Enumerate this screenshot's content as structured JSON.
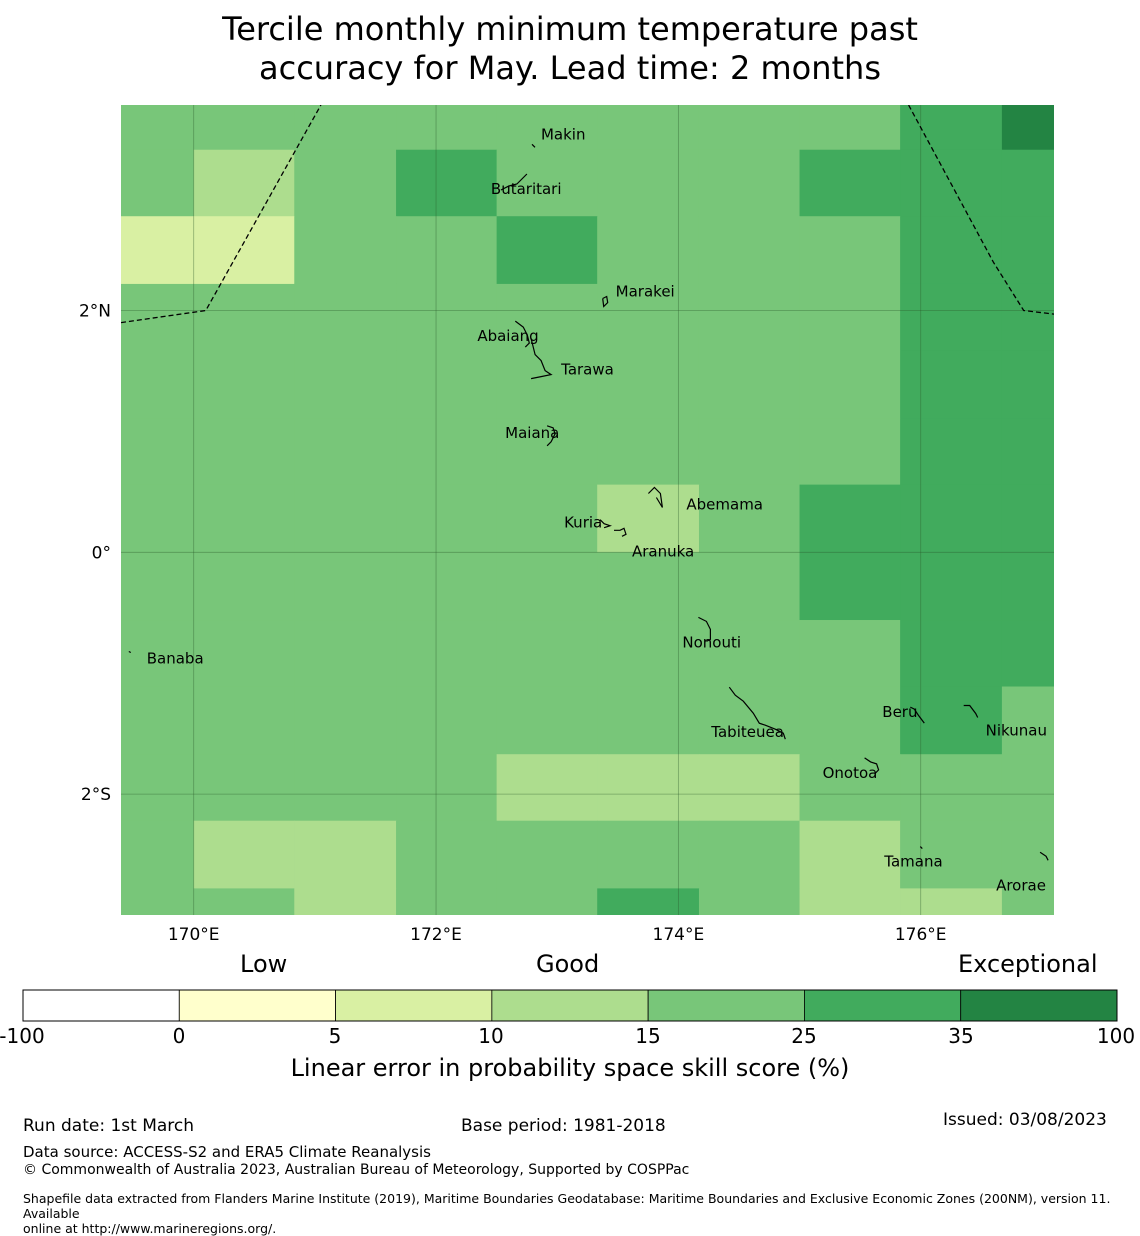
{
  "title_line1": "Tercile monthly minimum temperature past",
  "title_line2": "accuracy for May. Lead time: 2 months",
  "map": {
    "lon_range": [
      169.4,
      177.1
    ],
    "lat_range": [
      -3.0,
      3.7
    ],
    "x_ticks": [
      {
        "lon": 170,
        "label": "170°E"
      },
      {
        "lon": 172,
        "label": "172°E"
      },
      {
        "lon": 174,
        "label": "174°E"
      },
      {
        "lon": 176,
        "label": "176°E"
      }
    ],
    "y_ticks": [
      {
        "lat": 2,
        "label": "2°N"
      },
      {
        "lat": 0,
        "label": "0°"
      },
      {
        "lat": -2,
        "label": "2°S"
      }
    ],
    "palette": [
      "#ffffff",
      "#ffffcc",
      "#d9f0a3",
      "#addd8e",
      "#78c679",
      "#41ab5d",
      "#238443"
    ],
    "grid": {
      "lon_edges": [
        169.4,
        170.0,
        170.83,
        171.67,
        172.5,
        173.33,
        174.17,
        175.0,
        175.83,
        176.67,
        177.1
      ],
      "lat_edges": [
        3.7,
        3.33,
        2.78,
        2.22,
        1.67,
        1.11,
        0.56,
        0.0,
        -0.56,
        -1.11,
        -1.67,
        -2.22,
        -2.78,
        -3.0
      ],
      "classes": [
        [
          4,
          4,
          4,
          4,
          4,
          4,
          4,
          4,
          5,
          6
        ],
        [
          4,
          3,
          4,
          5,
          4,
          4,
          4,
          5,
          5,
          5
        ],
        [
          2,
          2,
          4,
          4,
          5,
          4,
          4,
          4,
          5,
          5
        ],
        [
          4,
          4,
          4,
          4,
          4,
          4,
          4,
          4,
          5,
          5
        ],
        [
          4,
          4,
          4,
          4,
          4,
          4,
          4,
          4,
          5,
          5
        ],
        [
          4,
          4,
          4,
          4,
          4,
          4,
          4,
          4,
          5,
          5
        ],
        [
          4,
          4,
          4,
          4,
          4,
          3,
          4,
          5,
          5,
          5
        ],
        [
          4,
          4,
          4,
          4,
          4,
          4,
          4,
          5,
          5,
          5
        ],
        [
          4,
          4,
          4,
          4,
          4,
          4,
          4,
          4,
          5,
          5
        ],
        [
          4,
          4,
          4,
          4,
          4,
          4,
          4,
          4,
          5,
          4
        ],
        [
          4,
          4,
          4,
          4,
          3,
          3,
          3,
          4,
          4,
          4
        ],
        [
          4,
          3,
          3,
          4,
          4,
          4,
          4,
          3,
          4,
          4
        ],
        [
          4,
          4,
          3,
          4,
          4,
          5,
          4,
          3,
          3,
          4
        ]
      ]
    },
    "boundaries": [
      [
        [
          169.4,
          1.9
        ],
        [
          170.1,
          2.0
        ],
        [
          171.05,
          3.7
        ]
      ],
      [
        [
          175.9,
          3.7
        ],
        [
          176.6,
          2.4
        ],
        [
          176.85,
          2.0
        ],
        [
          177.1,
          1.97
        ]
      ]
    ],
    "islands": [
      {
        "name": "Makin",
        "lon": 172.8,
        "lat": 3.35,
        "label": "Makin"
      },
      {
        "name": "Butaritari",
        "lon": 172.75,
        "lat": 3.03,
        "label": "Butaritari"
      },
      {
        "name": "Marakei",
        "lon": 173.4,
        "lat": 2.05,
        "label": "Marakei"
      },
      {
        "name": "Abaiang",
        "lon": 172.77,
        "lat": 1.83,
        "label": "Abaiang"
      },
      {
        "name": "Tarawa",
        "lon": 172.95,
        "lat": 1.47,
        "label": "Tarawa"
      },
      {
        "name": "Maiana",
        "lon": 172.95,
        "lat": 0.98,
        "label": "Maiana"
      },
      {
        "name": "Abemama",
        "lon": 174.0,
        "lat": 0.42,
        "label": "Abemama"
      },
      {
        "name": "Kuria",
        "lon": 173.42,
        "lat": 0.22,
        "label": "Kuria"
      },
      {
        "name": "Aranuka",
        "lon": 173.65,
        "lat": 0.05,
        "label": "Aranuka"
      },
      {
        "name": "Nonouti",
        "lon": 174.38,
        "lat": -0.72,
        "label": "Nonouti"
      },
      {
        "name": "Banaba",
        "lon": 169.53,
        "lat": -0.87,
        "label": "Banaba"
      },
      {
        "name": "Beru",
        "lon": 175.98,
        "lat": -1.33,
        "label": "Beru"
      },
      {
        "name": "Tabiteuea",
        "lon": 174.8,
        "lat": -1.43,
        "label": "Tabiteuea"
      },
      {
        "name": "Nikunau",
        "lon": 176.47,
        "lat": -1.35,
        "label": "Nikunau"
      },
      {
        "name": "Onotoa",
        "lon": 175.57,
        "lat": -1.8,
        "label": "Onotoa"
      },
      {
        "name": "Tamana",
        "lon": 175.98,
        "lat": -2.5,
        "label": "Tamana"
      },
      {
        "name": "Arorae",
        "lon": 176.82,
        "lat": -2.63,
        "label": "Arorae"
      }
    ]
  },
  "colorbar": {
    "categories": [
      "Low",
      "Good",
      "Exceptional"
    ],
    "ticks": [
      "-100",
      "0",
      "5",
      "10",
      "15",
      "25",
      "35",
      "100"
    ],
    "colors": [
      "#ffffff",
      "#ffffcc",
      "#d9f0a3",
      "#addd8e",
      "#78c679",
      "#41ab5d",
      "#238443"
    ],
    "label": "Linear error in probability space skill score (%)"
  },
  "footer": {
    "run_date": "Run date: 1st March",
    "base_period": "Base period: 1981-2018",
    "issued": "Issued: 03/08/2023",
    "data_source": "Data source: ACCESS-S2 and ERA5 Climate Reanalysis",
    "copyright": "© Commonwealth of Australia 2023, Australian Bureau of Meteorology, Supported by COSPPac",
    "shapefile_line1": "Shapefile data extracted from Flanders Marine Institute (2019), Maritime Boundaries Geodatabase: Maritime Boundaries and Exclusive Economic Zones (200NM), version 11. Available",
    "shapefile_line2": "online at http://www.marineregions.org/."
  }
}
